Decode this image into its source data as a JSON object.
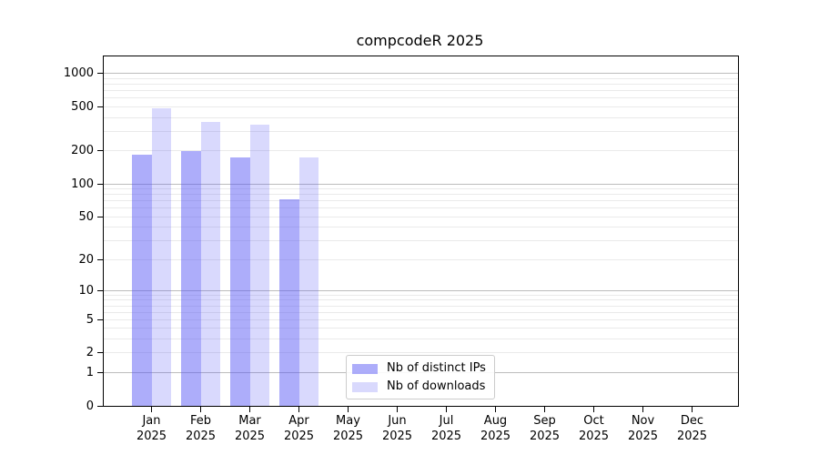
{
  "chart_data": {
    "type": "bar",
    "title": "compcodeR 2025",
    "x_axis": {
      "months": [
        "Jan",
        "Feb",
        "Mar",
        "Apr",
        "May",
        "Jun",
        "Jul",
        "Aug",
        "Sep",
        "Oct",
        "Nov",
        "Dec"
      ],
      "year": "2025"
    },
    "y_axis": {
      "scale": "log10(value+1)",
      "tick_values": [
        0,
        1,
        2,
        5,
        10,
        20,
        50,
        100,
        200,
        500,
        1000
      ],
      "axis_top_value": 1430,
      "major_gridline_values": [
        1,
        10,
        100,
        1000
      ],
      "minor_gridline_decades": [
        1,
        10,
        100
      ]
    },
    "series": [
      {
        "name": "Nb of distinct IPs",
        "color": "rgba(80,80,245,0.47)",
        "values": [
          185,
          200,
          175,
          72,
          0,
          0,
          0,
          0,
          0,
          0,
          0,
          0
        ]
      },
      {
        "name": "Nb of downloads",
        "color": "rgba(80,80,245,0.22)",
        "values": [
          490,
          365,
          345,
          175,
          0,
          0,
          0,
          0,
          0,
          0,
          0,
          0
        ]
      }
    ],
    "legend": {
      "position": "bottom-center-inside",
      "entries": [
        "Nb of distinct IPs",
        "Nb of downloads"
      ]
    },
    "colors": {
      "grid_major": "#bdbdbd",
      "grid_minor": "#eaeaea",
      "spine": "#000000",
      "text": "#000000",
      "legend_border": "#cccccc"
    },
    "grid": "horizontal only, log major + minor"
  }
}
